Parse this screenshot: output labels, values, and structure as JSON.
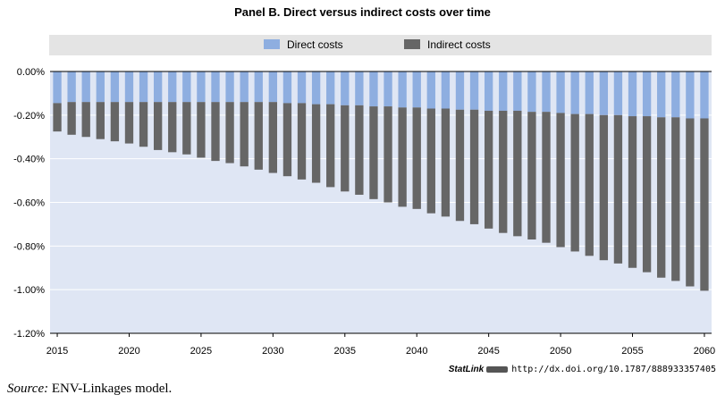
{
  "title": "Panel B. Direct versus indirect costs over time",
  "colors": {
    "direct": "#8eaee0",
    "indirect": "#666666",
    "plot_background": "#dfe6f4",
    "legend_background": "#e4e4e4"
  },
  "legend": [
    {
      "key": "direct",
      "label": "Direct costs"
    },
    {
      "key": "indirect",
      "label": "Indirect costs"
    }
  ],
  "chart_data": {
    "type": "bar",
    "stacked": true,
    "title": "Panel B. Direct versus indirect costs over time",
    "x": [
      2015,
      2016,
      2017,
      2018,
      2019,
      2020,
      2021,
      2022,
      2023,
      2024,
      2025,
      2026,
      2027,
      2028,
      2029,
      2030,
      2031,
      2032,
      2033,
      2034,
      2035,
      2036,
      2037,
      2038,
      2039,
      2040,
      2041,
      2042,
      2043,
      2044,
      2045,
      2046,
      2047,
      2048,
      2049,
      2050,
      2051,
      2052,
      2053,
      2054,
      2055,
      2056,
      2057,
      2058,
      2059,
      2060
    ],
    "x_tick_labels": [
      "2015",
      "2020",
      "2025",
      "2030",
      "2035",
      "2040",
      "2045",
      "2050",
      "2055",
      "2060"
    ],
    "ylim": [
      -1.2,
      0
    ],
    "y_ticks": [
      0,
      -0.2,
      -0.4,
      -0.6,
      -0.8,
      -1.0,
      -1.2
    ],
    "y_tick_labels": [
      "0.00%",
      "-0.20%",
      "-0.40%",
      "-0.60%",
      "-0.80%",
      "-1.00%",
      "-1.20%"
    ],
    "grid": true,
    "legend_position": "top",
    "series": [
      {
        "name": "Direct costs",
        "values": [
          -0.145,
          -0.14,
          -0.14,
          -0.14,
          -0.14,
          -0.14,
          -0.14,
          -0.14,
          -0.14,
          -0.14,
          -0.14,
          -0.14,
          -0.14,
          -0.14,
          -0.14,
          -0.14,
          -0.145,
          -0.145,
          -0.15,
          -0.15,
          -0.155,
          -0.155,
          -0.16,
          -0.16,
          -0.165,
          -0.165,
          -0.17,
          -0.17,
          -0.175,
          -0.175,
          -0.18,
          -0.18,
          -0.18,
          -0.185,
          -0.185,
          -0.19,
          -0.195,
          -0.195,
          -0.2,
          -0.2,
          -0.205,
          -0.205,
          -0.21,
          -0.21,
          -0.215,
          -0.215
        ]
      },
      {
        "name": "Indirect costs",
        "values": [
          -0.13,
          -0.15,
          -0.16,
          -0.17,
          -0.18,
          -0.19,
          -0.205,
          -0.22,
          -0.23,
          -0.24,
          -0.255,
          -0.27,
          -0.28,
          -0.295,
          -0.31,
          -0.325,
          -0.335,
          -0.35,
          -0.36,
          -0.38,
          -0.395,
          -0.41,
          -0.425,
          -0.44,
          -0.455,
          -0.465,
          -0.48,
          -0.495,
          -0.51,
          -0.525,
          -0.54,
          -0.56,
          -0.575,
          -0.585,
          -0.6,
          -0.615,
          -0.63,
          -0.65,
          -0.665,
          -0.68,
          -0.695,
          -0.715,
          -0.735,
          -0.75,
          -0.77,
          -0.79
        ]
      }
    ]
  },
  "statlink": {
    "brand": "StatLink",
    "url": "http://dx.doi.org/10.1787/888933357405"
  },
  "source": {
    "label": "Source:",
    "text": " ENV-Linkages model."
  }
}
